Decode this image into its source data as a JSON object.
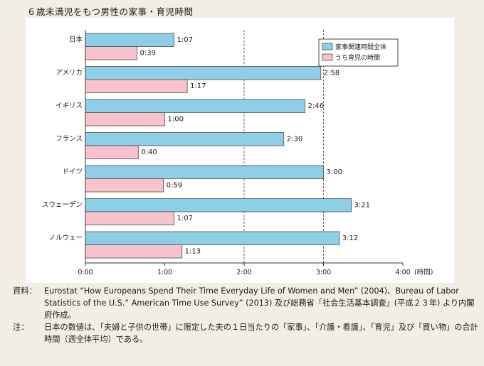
{
  "title": "６歳未満児をもつ男性の家事・育児時間",
  "chart_data": {
    "type": "bar",
    "orientation": "horizontal",
    "title": "６歳未満児をもつ男性の家事・育児時間",
    "categories": [
      "日本",
      "アメリカ",
      "イギリス",
      "フランス",
      "ドイツ",
      "スウェーデン",
      "ノルウェー"
    ],
    "series": [
      {
        "name": "家事関連時間全体",
        "color": "#8ecfe8",
        "values_minutes": [
          67,
          178,
          166,
          150,
          180,
          201,
          192
        ],
        "labels": [
          "1:07",
          "2:58",
          "2:46",
          "2:30",
          "3:00",
          "3:21",
          "3:12"
        ]
      },
      {
        "name": "うち育児の時間",
        "color": "#f9c2cf",
        "values_minutes": [
          39,
          77,
          60,
          40,
          59,
          67,
          73
        ],
        "labels": [
          "0:39",
          "1:17",
          "1:00",
          "0:40",
          "0:59",
          "1:07",
          "1:13"
        ]
      }
    ],
    "x_ticks": [
      "0:00",
      "1:00",
      "2:00",
      "3:00",
      "4:00"
    ],
    "x_unit": "(時間)",
    "xlim_minutes": [
      0,
      240
    ],
    "grid": "dashed vertical at 2:00 and 3:00",
    "legend_position": "top-right"
  },
  "source": {
    "label": "資料：",
    "text": "Eurostat “How Europeans Spend Their Time Everyday Life of Women and Men” (2004)、Bureau of Labor Statistics of the U.S.“ American Time Use Survey” (2013) 及び総務省「社会生活基本調査」(平成２３年) より内閣府作成。"
  },
  "note": {
    "label": "注：",
    "text": "日本の数値は、「夫婦と子供の世帯」に限定した夫の１日当たりの「家事」、「介護・看護」、「育児」及び「買い物」の合計時間（週全体平均）である。"
  }
}
